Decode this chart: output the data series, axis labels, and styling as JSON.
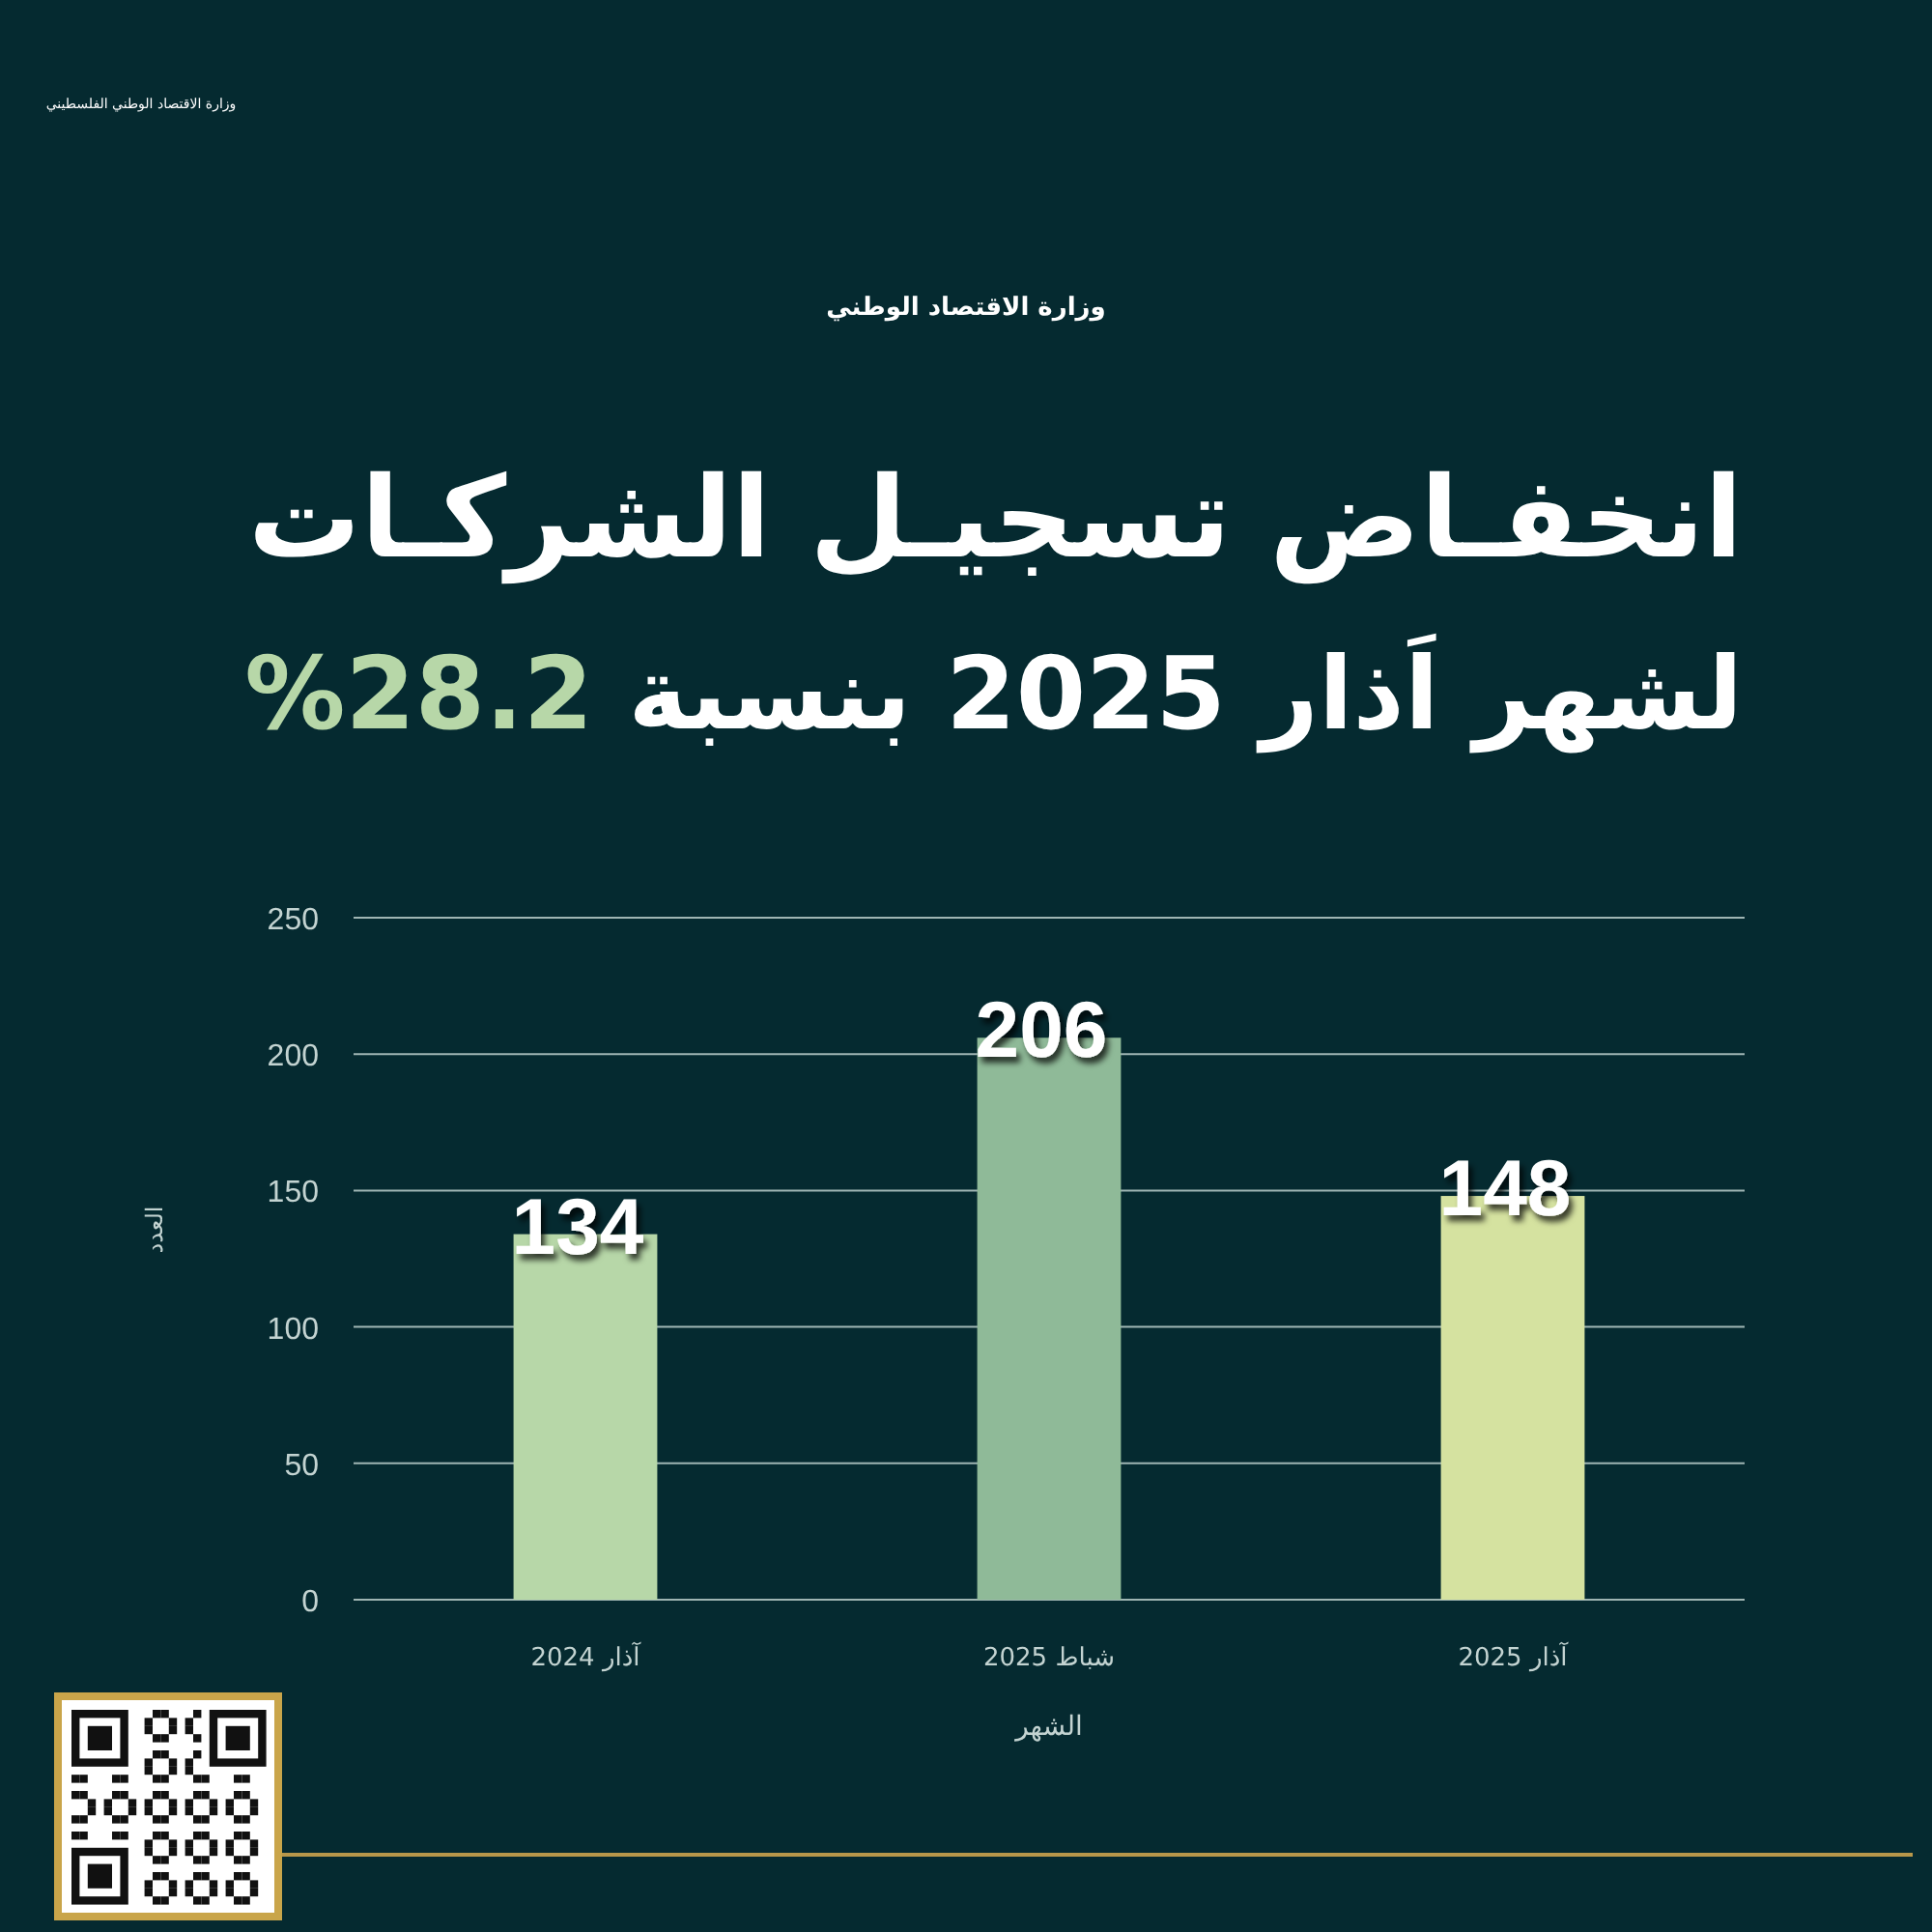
{
  "chart_data": {
    "type": "bar",
    "title": "انخفـاض تسجيـل الشركـات",
    "subtitle": "لشهر اَذار 2025 بنسبة 28.2%",
    "categories": [
      "آذار 2024",
      "شباط 2025",
      "آذار 2025"
    ],
    "values": [
      134,
      206,
      148
    ],
    "colors": [
      "#b7d7a8",
      "#8fba98",
      "#d5e2a0"
    ],
    "ylim": [
      0,
      250
    ],
    "yticks": [
      0,
      50,
      100,
      150,
      200,
      250
    ],
    "xlabel": "الشهر",
    "ylabel": "العدد",
    "data_labels": true,
    "grid": "y",
    "annotations": [
      "وزارة الاقتصاد الوطني",
      "وزارة الاقتصاد الوطني الفلسطيني"
    ]
  }
}
